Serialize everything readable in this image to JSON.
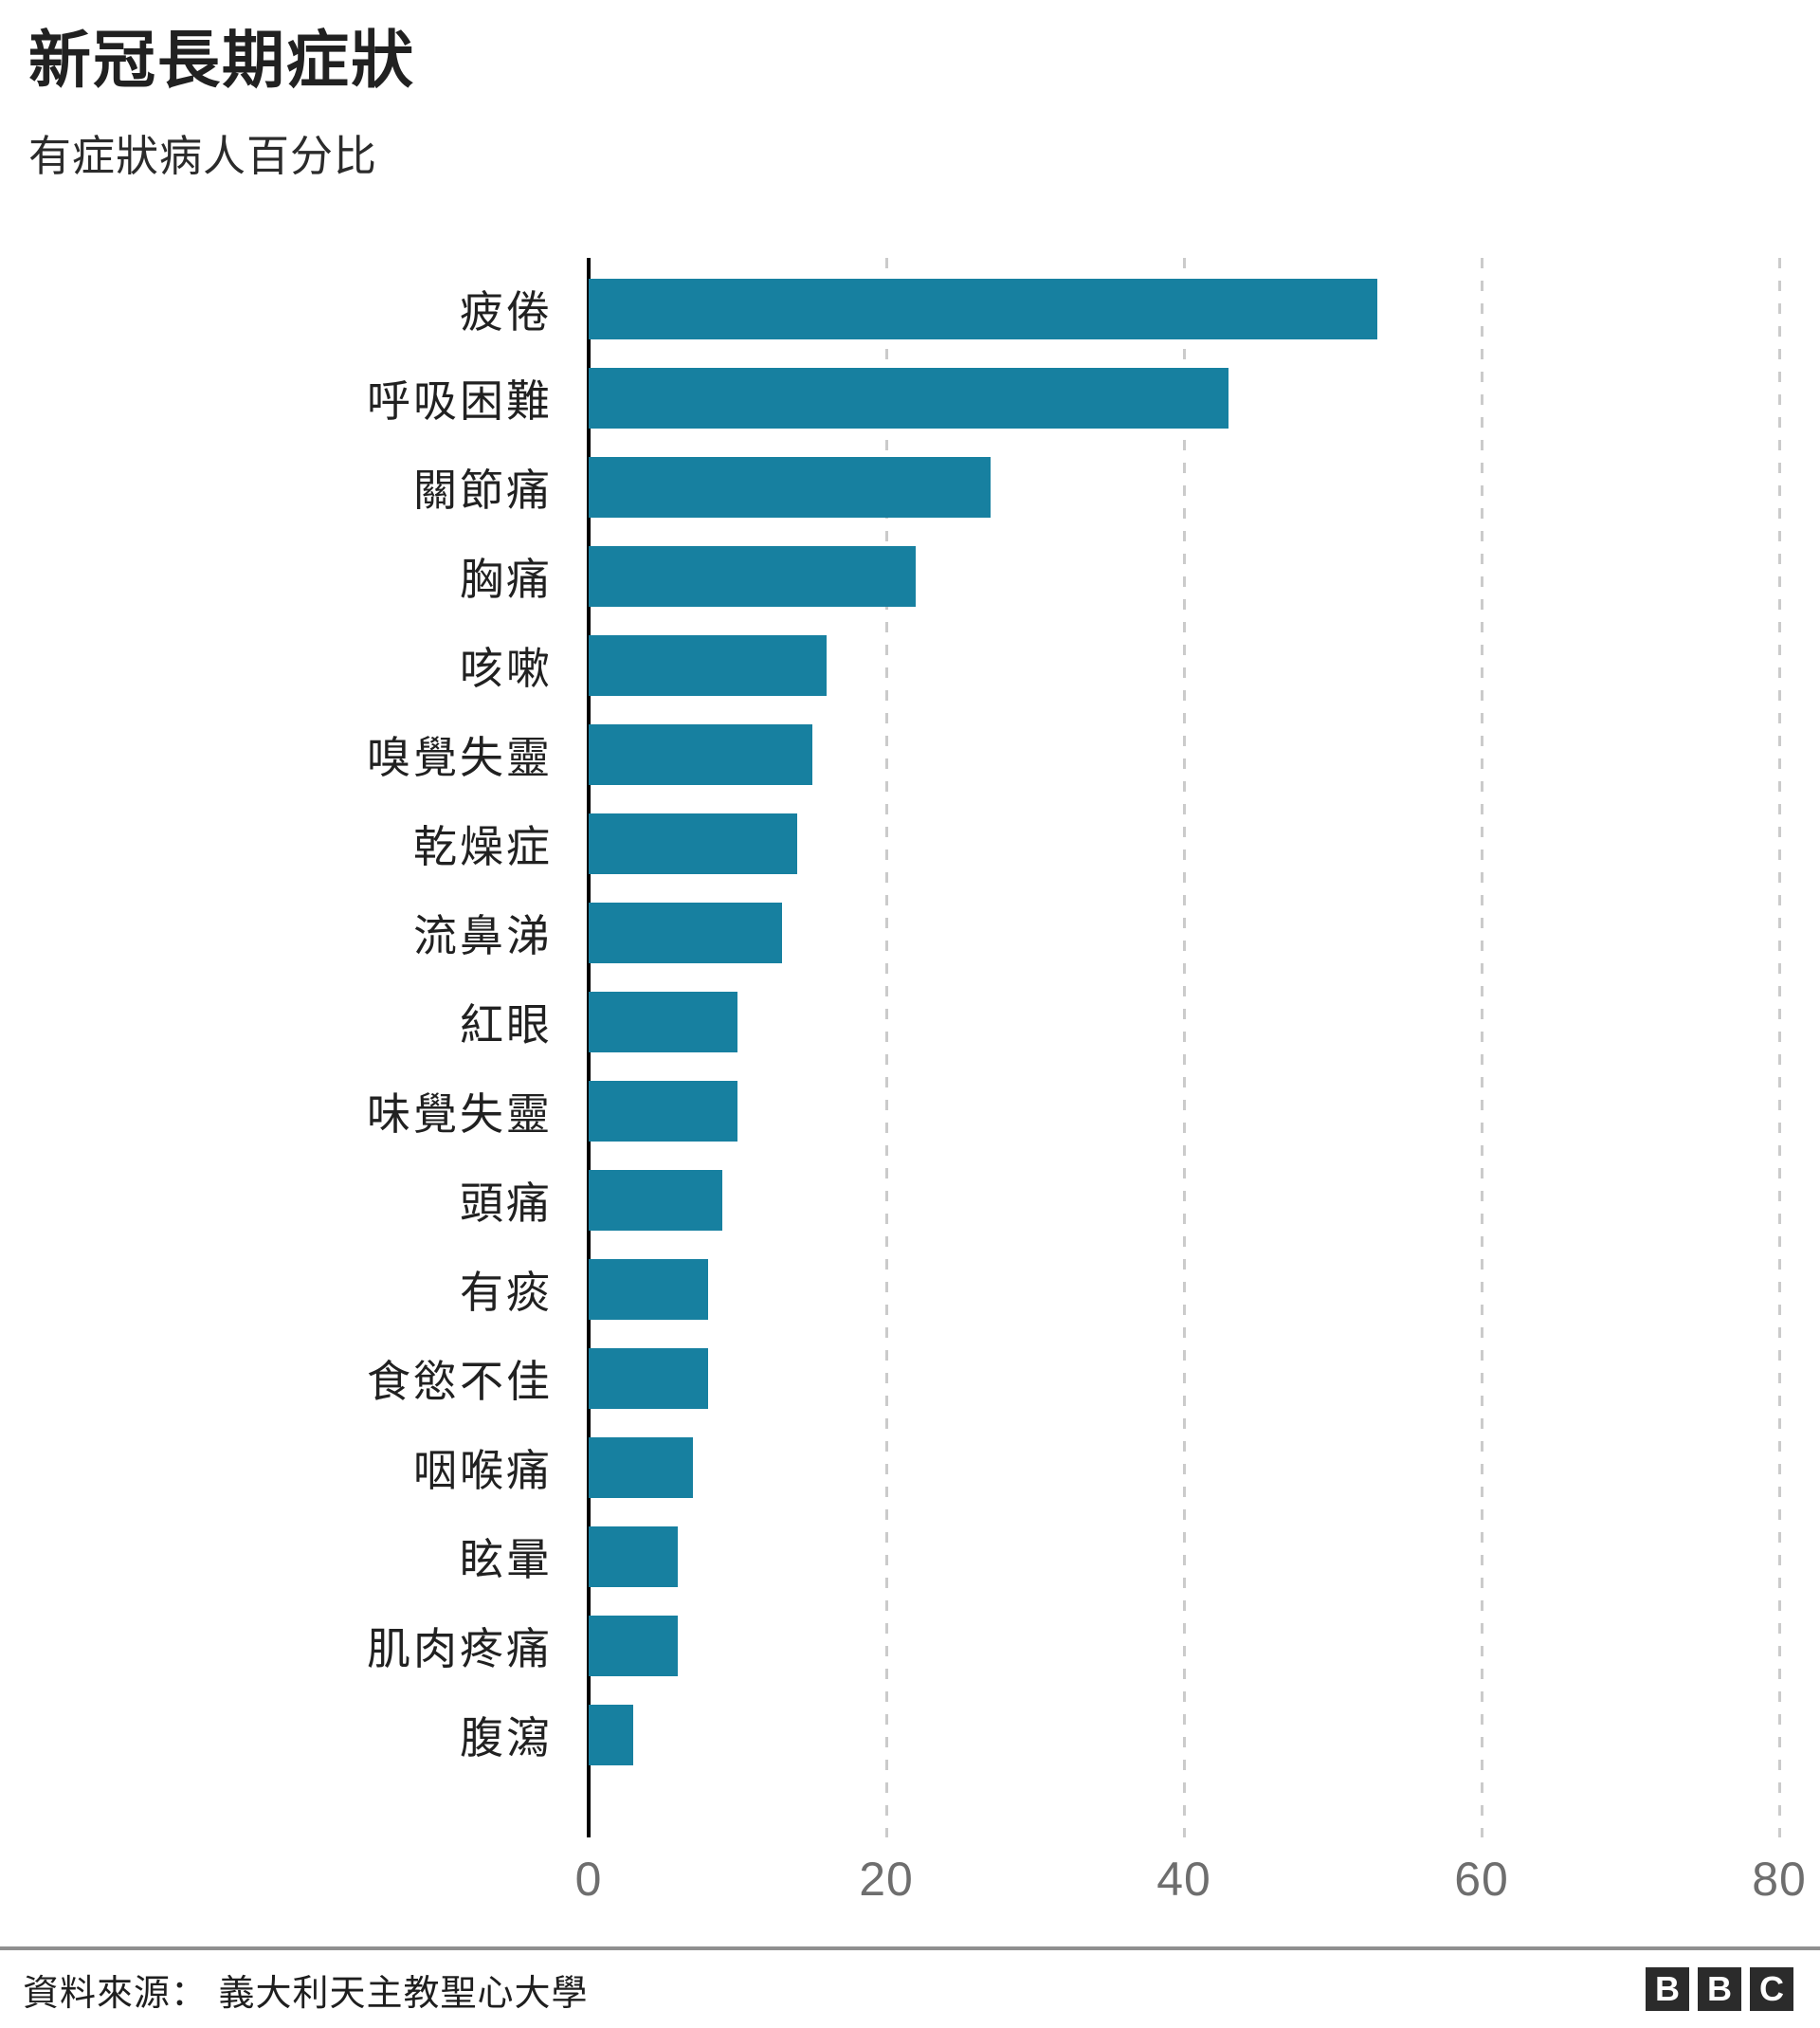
{
  "header": {
    "title": "新冠長期症狀",
    "subtitle": "有症狀病人百分比"
  },
  "chart_data": {
    "type": "bar",
    "orientation": "horizontal",
    "title": "新冠長期症狀",
    "subtitle": "有症狀病人百分比",
    "categories": [
      "疲倦",
      "呼吸困難",
      "關節痛",
      "胸痛",
      "咳嗽",
      "嗅覺失靈",
      "乾燥症",
      "流鼻涕",
      "紅眼",
      "味覺失靈",
      "頭痛",
      "有痰",
      "食慾不佳",
      "咽喉痛",
      "眩暈",
      "肌肉疼痛",
      "腹瀉"
    ],
    "values": [
      53,
      43,
      27,
      22,
      16,
      15,
      14,
      13,
      10,
      10,
      9,
      8,
      8,
      7,
      6,
      6,
      3
    ],
    "unit": "percent",
    "xlabel": "",
    "ylabel": "",
    "xlim": [
      0,
      80
    ],
    "xticks": [
      0,
      20,
      40,
      60,
      80
    ],
    "grid": "vertical-dashed",
    "legend": "none",
    "bar_color": "#1780A0",
    "axis_color": "#000000",
    "gridline_color": "#cbcbcb",
    "tick_color": "#6e6e6e"
  },
  "footer": {
    "source": "資料來源： 義大利天主教聖心大學",
    "logo_letters": [
      "B",
      "B",
      "C"
    ]
  }
}
